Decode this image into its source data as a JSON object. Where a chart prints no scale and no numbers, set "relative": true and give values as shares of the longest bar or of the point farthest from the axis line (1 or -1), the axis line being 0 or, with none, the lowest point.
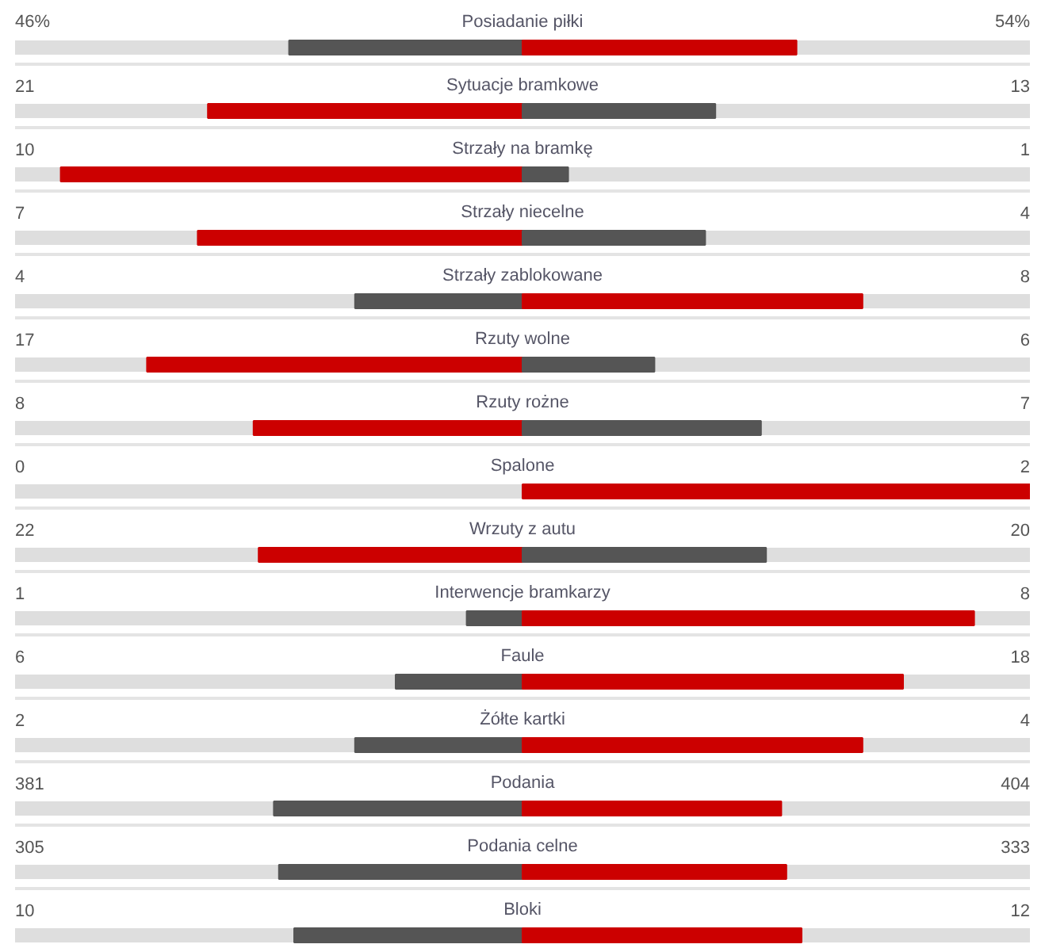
{
  "chart_data": {
    "type": "bar",
    "orientation": "horizontal",
    "stacked": true,
    "relative": true,
    "grid": "y",
    "categories": [
      "Posiadanie piłki",
      "Sytuacje bramkowe",
      "Strzały na bramkę",
      "Strzały niecelne",
      "Strzały zablokowane",
      "Rzuty wolne",
      "Rzuty rożne",
      "Spalone",
      "Wrzuty z autu",
      "Interwencje bramkarzy",
      "Faule",
      "Żółte kartki",
      "Podania",
      "Podania celne",
      "Bloki"
    ],
    "series": [
      {
        "values": [
          -0.46,
          -0.62,
          -0.91,
          -0.64,
          -0.33,
          -0.74,
          -0.53,
          0,
          -0.52,
          -0.11,
          -0.25,
          -0.33,
          -0.49,
          -0.48,
          -0.45
        ],
        "colors": [
          "#555555",
          "#cc0000",
          "#cc0000",
          "#cc0000",
          "#555555",
          "#cc0000",
          "#cc0000",
          "#555555",
          "#cc0000",
          "#555555",
          "#555555",
          "#555555",
          "#555555",
          "#555555",
          "#555555"
        ]
      },
      {
        "values": [
          0.54,
          0.38,
          0.09,
          0.36,
          0.67,
          0.26,
          0.47,
          1,
          0.48,
          0.89,
          0.75,
          0.67,
          0.51,
          0.52,
          0.55
        ],
        "colors": [
          "#cc0000",
          "#555555",
          "#555555",
          "#555555",
          "#cc0000",
          "#555555",
          "#555555",
          "#cc0000",
          "#555555",
          "#cc0000",
          "#cc0000",
          "#cc0000",
          "#cc0000",
          "#cc0000",
          "#cc0000"
        ]
      }
    ],
    "annotations": [
      "46%",
      "54%",
      "21",
      "13",
      "10",
      "1",
      "7",
      "4",
      "4",
      "8",
      "17",
      "6",
      "8",
      "7",
      "0",
      "2",
      "22",
      "20",
      "1",
      "8",
      "6",
      "18",
      "2",
      "4",
      "381",
      "404",
      "305",
      "333",
      "10",
      "12"
    ]
  }
}
